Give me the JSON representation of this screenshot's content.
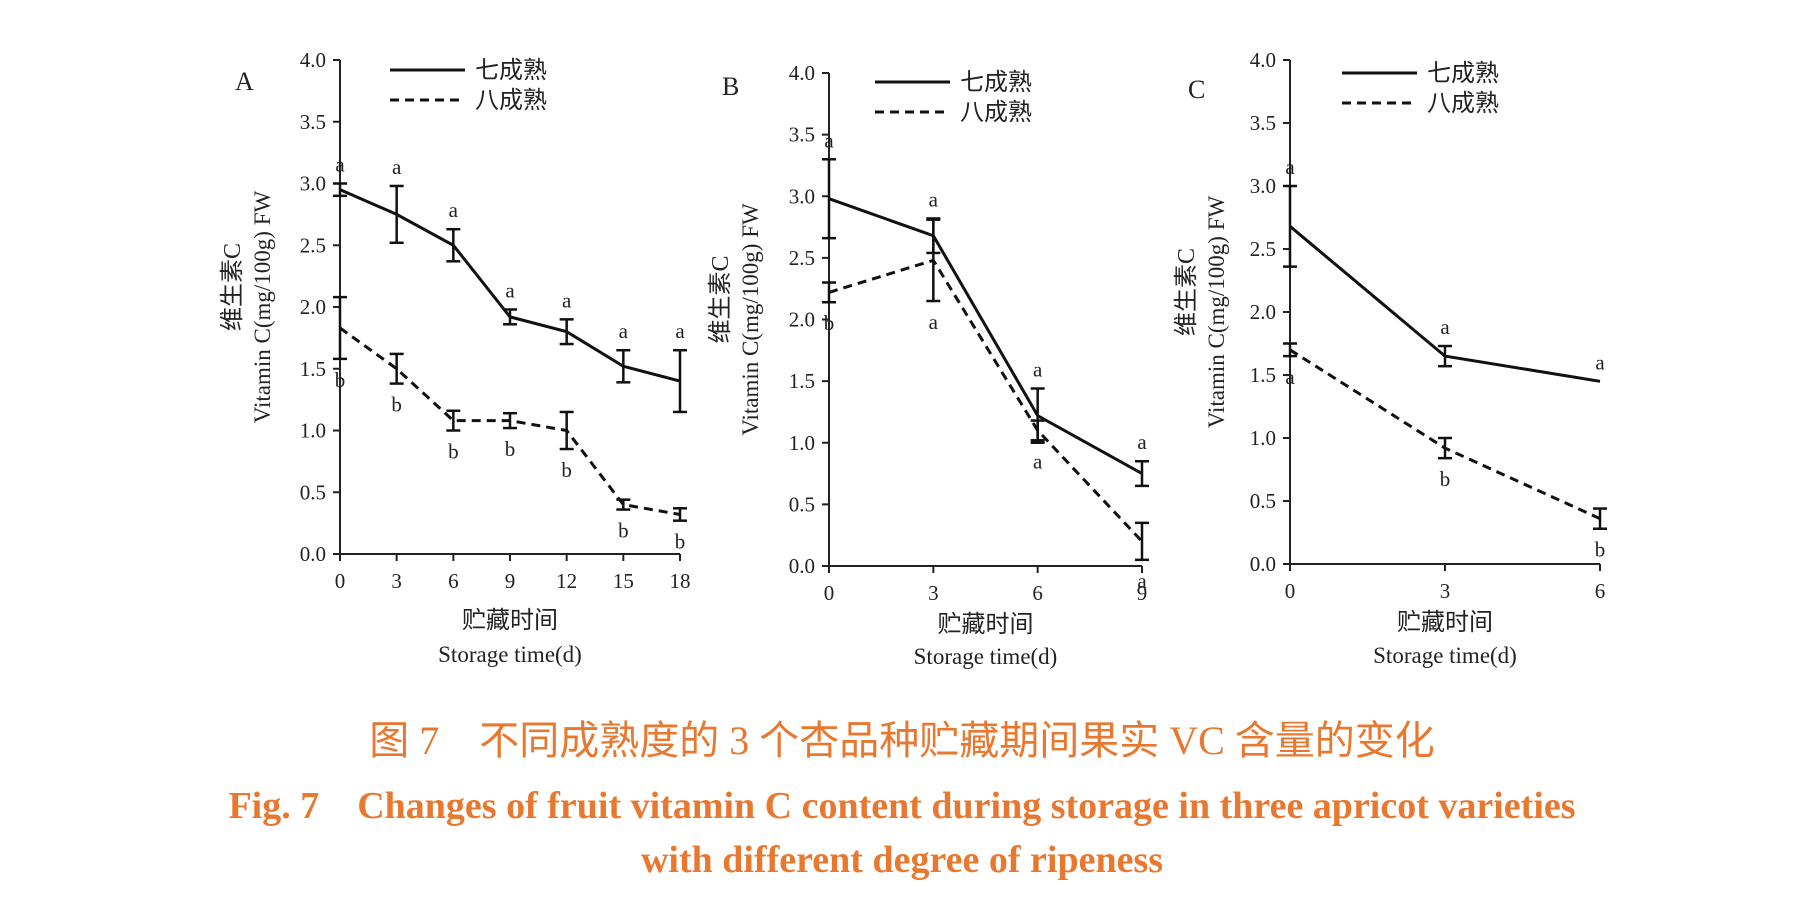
{
  "caption": {
    "cn": "图 7　不同成熟度的 3 个杏品种贮藏期间果实 VC 含量的变化",
    "en_line1": "Fig. 7　Changes of fruit vitamin C content during storage in three apricot varieties",
    "en_line2": "with different degree of ripeness"
  },
  "chart_data": [
    {
      "type": "line",
      "panel_label": "A",
      "x": [
        0,
        3,
        6,
        9,
        12,
        15,
        18
      ],
      "xticks": [
        "0",
        "3",
        "6",
        "9",
        "12",
        "15",
        "18"
      ],
      "xlim": [
        0,
        18
      ],
      "ylim": [
        0,
        4.0
      ],
      "yticks": [
        "0.0",
        "0.5",
        "1.0",
        "1.5",
        "2.0",
        "2.5",
        "3.0",
        "3.5",
        "4.0"
      ],
      "xlabel_cn": "贮藏时间",
      "xlabel_en": "Storage time(d)",
      "ylabel_cn": "维生素C",
      "ylabel_en": "Vitamin C(mg/100g) FW",
      "legend": [
        "七成熟",
        "八成熟"
      ],
      "legend_position": "top-center",
      "grid": false,
      "series": [
        {
          "name": "七成熟",
          "style": "solid",
          "values": [
            2.95,
            2.75,
            2.5,
            1.92,
            1.8,
            1.52,
            1.4
          ],
          "errors": [
            0.05,
            0.23,
            0.13,
            0.06,
            0.1,
            0.13,
            0.25
          ],
          "letters": [
            "a",
            "a",
            "a",
            "a",
            "a",
            "a",
            "a"
          ]
        },
        {
          "name": "八成熟",
          "style": "dashed",
          "values": [
            1.83,
            1.5,
            1.08,
            1.08,
            1.0,
            0.4,
            0.32
          ],
          "errors": [
            0.25,
            0.12,
            0.08,
            0.06,
            0.15,
            0.04,
            0.05
          ],
          "letters": [
            "b",
            "b",
            "b",
            "b",
            "b",
            "b",
            "b"
          ]
        }
      ]
    },
    {
      "type": "line",
      "panel_label": "B",
      "x": [
        0,
        3,
        6,
        9
      ],
      "xticks": [
        "0",
        "3",
        "6",
        "9"
      ],
      "xlim": [
        0,
        9
      ],
      "ylim": [
        0,
        4.0
      ],
      "yticks": [
        "0.0",
        "0.5",
        "1.0",
        "1.5",
        "2.0",
        "2.5",
        "3.0",
        "3.5",
        "4.0"
      ],
      "xlabel_cn": "贮藏时间",
      "xlabel_en": "Storage time(d)",
      "ylabel_cn": "维生素C",
      "ylabel_en": "Vitamin C(mg/100g) FW",
      "legend": [
        "七成熟",
        "八成熟"
      ],
      "legend_position": "top-center",
      "grid": false,
      "series": [
        {
          "name": "七成熟",
          "style": "solid",
          "values": [
            2.98,
            2.68,
            1.22,
            0.75
          ],
          "errors": [
            0.32,
            0.14,
            0.22,
            0.1
          ],
          "letters": [
            "a",
            "a",
            "a",
            "a"
          ]
        },
        {
          "name": "八成熟",
          "style": "dashed",
          "values": [
            2.22,
            2.48,
            1.1,
            0.2
          ],
          "errors": [
            0.08,
            0.33,
            0.08,
            0.15
          ],
          "letters": [
            "b",
            "a",
            "a",
            "a"
          ]
        }
      ]
    },
    {
      "type": "line",
      "panel_label": "C",
      "x": [
        0,
        3,
        6
      ],
      "xticks": [
        "0",
        "3",
        "6"
      ],
      "xlim": [
        0,
        6
      ],
      "ylim": [
        0,
        4.0
      ],
      "yticks": [
        "0.0",
        "0.5",
        "1.0",
        "1.5",
        "2.0",
        "2.5",
        "3.0",
        "3.5",
        "4.0"
      ],
      "xlabel_cn": "贮藏时间",
      "xlabel_en": "Storage time(d)",
      "ylabel_cn": "维生素C",
      "ylabel_en": "Vitamin C(mg/100g) FW",
      "legend": [
        "七成熟",
        "八成熟"
      ],
      "legend_position": "top-center",
      "grid": false,
      "series": [
        {
          "name": "七成熟",
          "style": "solid",
          "values": [
            2.68,
            1.65,
            1.45
          ],
          "errors": [
            0.32,
            0.08,
            0
          ],
          "letters": [
            "a",
            "a",
            "a"
          ]
        },
        {
          "name": "八成熟",
          "style": "dashed",
          "values": [
            1.7,
            0.92,
            0.36
          ],
          "errors": [
            0.05,
            0.08,
            0.08
          ],
          "letters": [
            "a",
            "b",
            "b"
          ]
        }
      ]
    }
  ]
}
